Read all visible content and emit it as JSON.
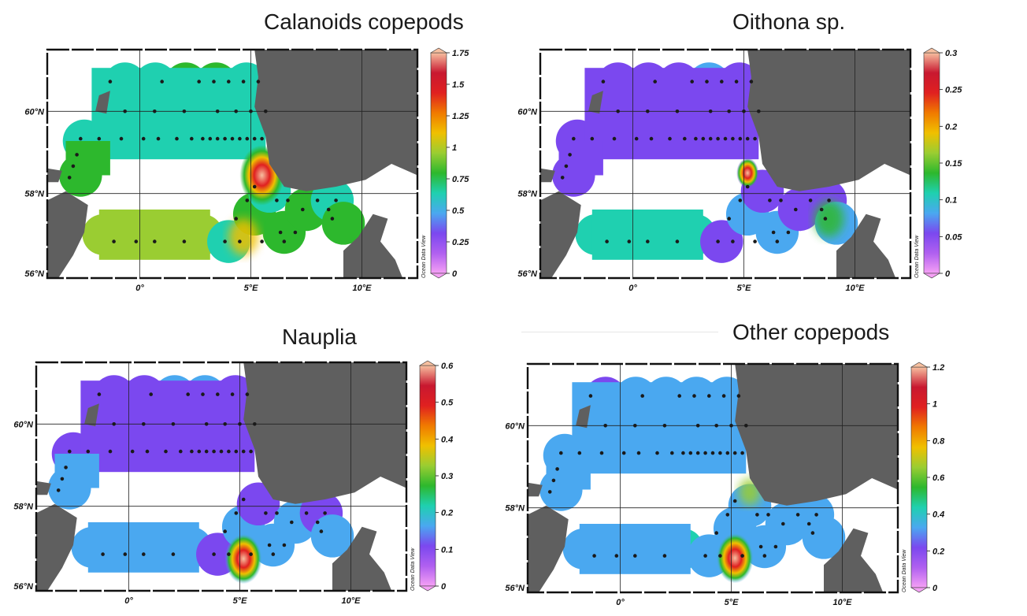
{
  "panels": [
    {
      "id": "calanoids",
      "title": "Calanoids copepods",
      "lat_labels": [
        "60°N",
        "58°N",
        "56°N"
      ],
      "lon_labels": [
        "0°",
        "5°E",
        "10°E"
      ],
      "colorbar_ticks": [
        "1.75",
        "1.5",
        "1.25",
        "1",
        "0.75",
        "0.5",
        "0.25",
        "0"
      ],
      "watermark": "Ocean Data View"
    },
    {
      "id": "oithona",
      "title": "Oithona sp.",
      "lat_labels": [
        "60°N",
        "58°N",
        "56°N"
      ],
      "lon_labels": [
        "0°",
        "5°E",
        "10°E"
      ],
      "colorbar_ticks": [
        "0.3",
        "0.25",
        "0.2",
        "0.15",
        "0.1",
        "0.05",
        "0"
      ],
      "watermark": "Ocean Data View"
    },
    {
      "id": "nauplia",
      "title": "Nauplia",
      "lat_labels": [
        "60°N",
        "58°N",
        "56°N"
      ],
      "lon_labels": [
        "0°",
        "5°E",
        "10°E"
      ],
      "colorbar_ticks": [
        "0.6",
        "0.5",
        "0.4",
        "0.3",
        "0.2",
        "0.1",
        "0"
      ],
      "watermark": "Ocean Data View"
    },
    {
      "id": "other",
      "title": "Other copepods",
      "lat_labels": [
        "60°N",
        "58°N",
        "56°N"
      ],
      "lon_labels": [
        "0°",
        "5°E",
        "10°E"
      ],
      "colorbar_ticks": [
        "1.2",
        "1",
        "0.8",
        "0.6",
        "0.4",
        "0.2",
        "0"
      ],
      "watermark": "Ocean Data View"
    }
  ],
  "colors": {
    "land": "#5f5f5f",
    "station_dot": "#1a1a1a",
    "colormap": [
      "#f5a0f5",
      "#b060f0",
      "#7b48ef",
      "#4aa8f0",
      "#1fd0b0",
      "#2db82d",
      "#9acd32",
      "#f0c000",
      "#f07a00",
      "#e02020",
      "#c81830",
      "#f7c0a0"
    ]
  }
}
